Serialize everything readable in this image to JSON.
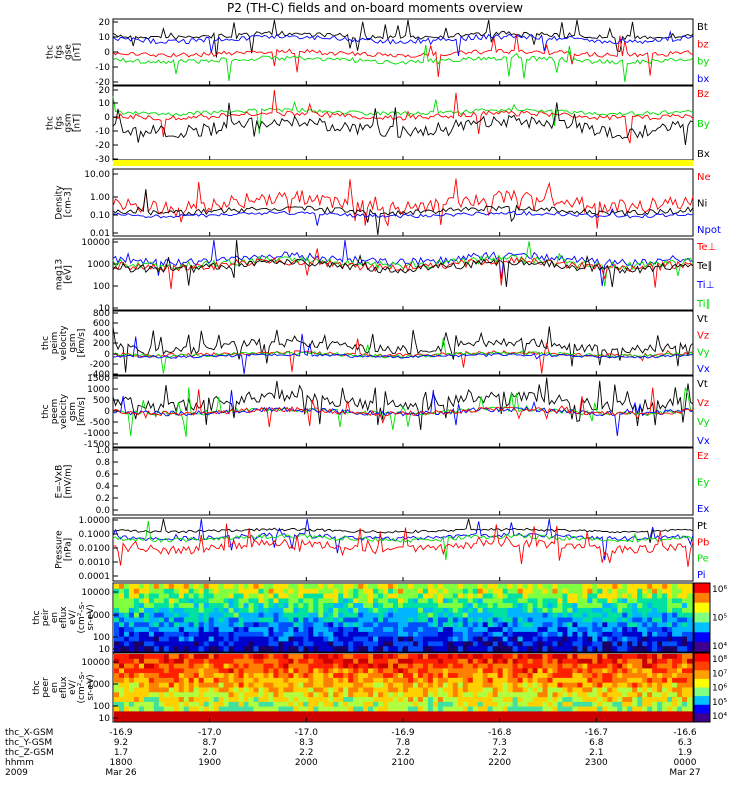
{
  "title": "P2 (TH-C) fields and on-board moments overview",
  "colors": {
    "black": "#000000",
    "red": "#ff0000",
    "green": "#00dd00",
    "blue": "#0000ff",
    "yellow": "#ffff00"
  },
  "chart_data": [
    {
      "type": "line",
      "ylabel": [
        "thc",
        "fgs",
        "gse",
        "[nT]"
      ],
      "yticks": [
        "20",
        "10",
        "0",
        "-10",
        "-20"
      ],
      "series": [
        {
          "name": "Bt",
          "color": "black"
        },
        {
          "name": "bz",
          "color": "red"
        },
        {
          "name": "by",
          "color": "green"
        },
        {
          "name": "bx",
          "color": "blue"
        }
      ]
    },
    {
      "type": "line",
      "ylabel": [
        "thc",
        "fgs",
        "gsm",
        "[nT]"
      ],
      "yticks": [
        "20",
        "10",
        "0",
        "-10",
        "-20",
        "-30"
      ],
      "series": [
        {
          "name": "Bz",
          "color": "red"
        },
        {
          "name": "By",
          "color": "green"
        },
        {
          "name": "Bx",
          "color": "black"
        }
      ]
    },
    {
      "type": "bar",
      "ylabel": [],
      "yticks": [],
      "series": []
    },
    {
      "type": "line",
      "ylabel": [
        "Density",
        "[cm-3]"
      ],
      "yticks": [
        "10.00",
        "1.00",
        "0.10",
        "0.01"
      ],
      "series": [
        {
          "name": "Ne",
          "color": "red"
        },
        {
          "name": "Ni",
          "color": "black"
        },
        {
          "name": "Npot",
          "color": "blue"
        }
      ]
    },
    {
      "type": "line",
      "ylabel": [
        "mag13",
        "[eV]"
      ],
      "yticks": [
        "10000",
        "1000",
        "100",
        "10"
      ],
      "series": [
        {
          "name": "Te⊥",
          "color": "red"
        },
        {
          "name": "Te∥",
          "color": "black"
        },
        {
          "name": "Ti⊥",
          "color": "blue"
        },
        {
          "name": "Ti∥",
          "color": "green"
        }
      ]
    },
    {
      "type": "line",
      "ylabel": [
        "thc",
        "peim",
        "velocity",
        "gsm",
        "[km/s]"
      ],
      "yticks": [
        "800",
        "600",
        "400",
        "200",
        "0",
        "-200",
        "-400"
      ],
      "series": [
        {
          "name": "Vt",
          "color": "black"
        },
        {
          "name": "Vz",
          "color": "red"
        },
        {
          "name": "Vy",
          "color": "green"
        },
        {
          "name": "Vx",
          "color": "blue"
        }
      ]
    },
    {
      "type": "line",
      "ylabel": [
        "thc",
        "peem",
        "velocity",
        "gsm",
        "[km/s]"
      ],
      "yticks": [
        "1500",
        "1000",
        "500",
        "0",
        "-500",
        "-1000",
        "-1500"
      ],
      "series": [
        {
          "name": "Vt",
          "color": "black"
        },
        {
          "name": "Vz",
          "color": "red"
        },
        {
          "name": "Vy",
          "color": "green"
        },
        {
          "name": "Vx",
          "color": "blue"
        }
      ]
    },
    {
      "type": "line",
      "ylabel": [
        "E=-VxB",
        "[mV/m]"
      ],
      "yticks": [
        "1.0",
        "0.8",
        "0.6",
        "0.4",
        "0.2",
        "0.0"
      ],
      "series": [
        {
          "name": "Ez",
          "color": "red"
        },
        {
          "name": "Ey",
          "color": "green"
        },
        {
          "name": "Ex",
          "color": "blue"
        }
      ]
    },
    {
      "type": "line",
      "ylabel": [
        "Pressure",
        "[nPa]"
      ],
      "yticks": [
        "1.0000",
        "0.1000",
        "0.0100",
        "0.0010",
        "0.0001"
      ],
      "series": [
        {
          "name": "Pt",
          "color": "black"
        },
        {
          "name": "Pb",
          "color": "red"
        },
        {
          "name": "Pe",
          "color": "green"
        },
        {
          "name": "Pi",
          "color": "blue"
        }
      ]
    },
    {
      "type": "heatmap",
      "ylabel": [
        "thc",
        "peir",
        "en",
        "eflux",
        "eV/",
        "(cm²-s-",
        "sr-eV)"
      ],
      "yticks": [
        "10000",
        "1000",
        "100",
        "10"
      ],
      "colorbar": [
        "10⁶",
        "10⁵",
        "10⁴"
      ]
    },
    {
      "type": "heatmap",
      "ylabel": [
        "thc",
        "peer",
        "en",
        "eflux",
        "eV/",
        "(cm²-s-",
        "sr-eV)"
      ],
      "yticks": [
        "10000",
        "1000",
        "100",
        "10"
      ],
      "colorbar": [
        "10⁸",
        "10⁷",
        "10⁶",
        "10⁵",
        "10⁴"
      ]
    }
  ],
  "xaxis": {
    "row_labels": [
      "thc_X-GSM",
      "thc_Y-GSM",
      "thc_Z-GSM",
      "hhmm",
      "2009"
    ],
    "columns": [
      [
        "-16.9",
        "9.2",
        "1.7",
        "1800",
        "Mar 26"
      ],
      [
        "-17.0",
        "8.7",
        "2.0",
        "1900",
        ""
      ],
      [
        "-17.0",
        "8.3",
        "2.2",
        "2000",
        ""
      ],
      [
        "-16.9",
        "7.8",
        "2.2",
        "2100",
        ""
      ],
      [
        "-16.8",
        "7.3",
        "2.2",
        "2200",
        ""
      ],
      [
        "-16.7",
        "6.8",
        "2.1",
        "2300",
        ""
      ],
      [
        "-16.6",
        "6.3",
        "1.9",
        "0000",
        "Mar 27"
      ]
    ]
  }
}
